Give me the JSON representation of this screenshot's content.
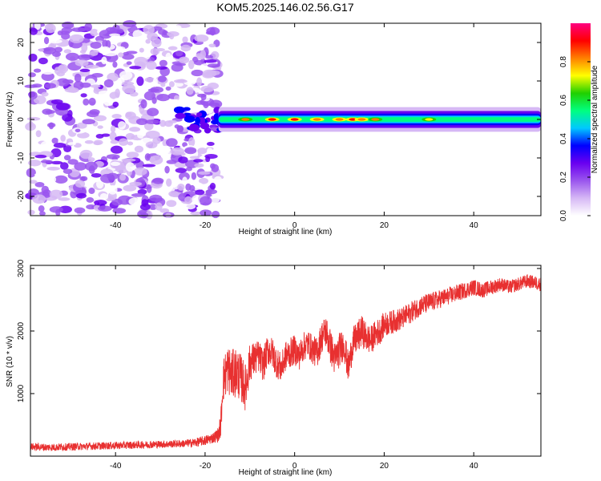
{
  "title": "KOM5.2025.146.02.56.G17",
  "chart_data": [
    {
      "type": "heatmap",
      "xlabel": "Height of straight line (km)",
      "ylabel": "Frequency (Hz)",
      "xlim": [
        -59,
        55
      ],
      "ylim": [
        -25,
        25
      ],
      "xticks": [
        -40,
        -20,
        0,
        20,
        40
      ],
      "yticks": [
        -20,
        -10,
        0,
        10,
        20
      ],
      "colorbar": {
        "label": "Normalized spectral amplitude",
        "range": [
          0,
          1
        ],
        "ticks": [
          0.0,
          0.2,
          0.4,
          0.6,
          0.8
        ],
        "tick_labels": [
          "0.0",
          "0.2",
          "0.4",
          "0.6",
          "0.8"
        ],
        "colors": [
          "#ffffff",
          "#d6b8f5",
          "#9a55ee",
          "#6a00f0",
          "#0000ff",
          "#00c8ff",
          "#00ff80",
          "#20d000",
          "#ffff00",
          "#ff8000",
          "#ff0000",
          "#ff0080"
        ]
      },
      "features": {
        "noise_region_x": [
          -59,
          -17
        ],
        "noise_amplitude_range": [
          0.05,
          0.3
        ],
        "carrier_start_x": -17,
        "carrier_end_x": 55,
        "carrier_frequency_hz": 0,
        "carrier_halfwidth_hz": 1.5,
        "carrier_peak_points": [
          [
            -11,
            0.85
          ],
          [
            -5,
            0.95
          ],
          [
            0,
            0.95
          ],
          [
            5,
            0.9
          ],
          [
            10,
            0.9
          ],
          [
            13,
            0.95
          ],
          [
            15,
            0.9
          ],
          [
            18,
            0.85
          ],
          [
            30,
            0.8
          ]
        ]
      }
    },
    {
      "type": "line",
      "xlabel": "Height of straight line (km)",
      "ylabel": "SNR (10 * v/v)",
      "xlim": [
        -59,
        55
      ],
      "ylim": [
        0,
        3050
      ],
      "xticks": [
        -40,
        -20,
        0,
        20,
        40
      ],
      "yticks": [
        1000,
        2000,
        3000
      ],
      "color": "#e83030",
      "series": [
        {
          "x": [
            -59,
            -55,
            -50,
            -45,
            -40,
            -35,
            -30,
            -25,
            -22,
            -20,
            -18,
            -17,
            -16.5,
            -16,
            -15,
            -14,
            -13,
            -12,
            -11,
            -10,
            -9,
            -8,
            -7,
            -6,
            -5,
            -4,
            -3,
            -2,
            -1,
            0,
            1,
            2,
            3,
            4,
            5,
            6,
            7,
            8,
            9,
            10,
            11,
            12,
            13,
            14,
            15,
            16,
            17,
            18,
            19,
            20,
            22,
            24,
            26,
            28,
            30,
            32,
            34,
            36,
            38,
            40,
            42,
            44,
            46,
            48,
            50,
            52,
            55
          ],
          "y": [
            150,
            140,
            150,
            160,
            170,
            180,
            190,
            200,
            220,
            250,
            300,
            350,
            500,
            1200,
            1400,
            1300,
            1350,
            1250,
            1100,
            1500,
            1550,
            1600,
            1450,
            1700,
            1650,
            1500,
            1400,
            1600,
            1650,
            1700,
            1600,
            1750,
            1800,
            1700,
            1650,
            1900,
            2000,
            1750,
            1550,
            1700,
            1800,
            1400,
            1800,
            1900,
            2000,
            1900,
            1850,
            1950,
            2000,
            2100,
            2150,
            2200,
            2300,
            2400,
            2450,
            2500,
            2550,
            2600,
            2650,
            2700,
            2650,
            2700,
            2750,
            2700,
            2750,
            2800,
            2750
          ],
          "noise_amplitude": [
            60,
            60,
            60,
            60,
            60,
            60,
            60,
            60,
            70,
            80,
            90,
            120,
            200,
            350,
            400,
            400,
            400,
            380,
            380,
            300,
            280,
            260,
            260,
            250,
            250,
            250,
            240,
            240,
            240,
            240,
            230,
            230,
            230,
            230,
            250,
            260,
            270,
            280,
            280,
            280,
            260,
            260,
            260,
            260,
            250,
            240,
            230,
            220,
            220,
            200,
            190,
            180,
            170,
            160,
            160,
            150,
            140,
            140,
            130,
            130,
            120,
            120,
            110,
            110,
            110,
            110,
            110
          ]
        }
      ]
    }
  ]
}
